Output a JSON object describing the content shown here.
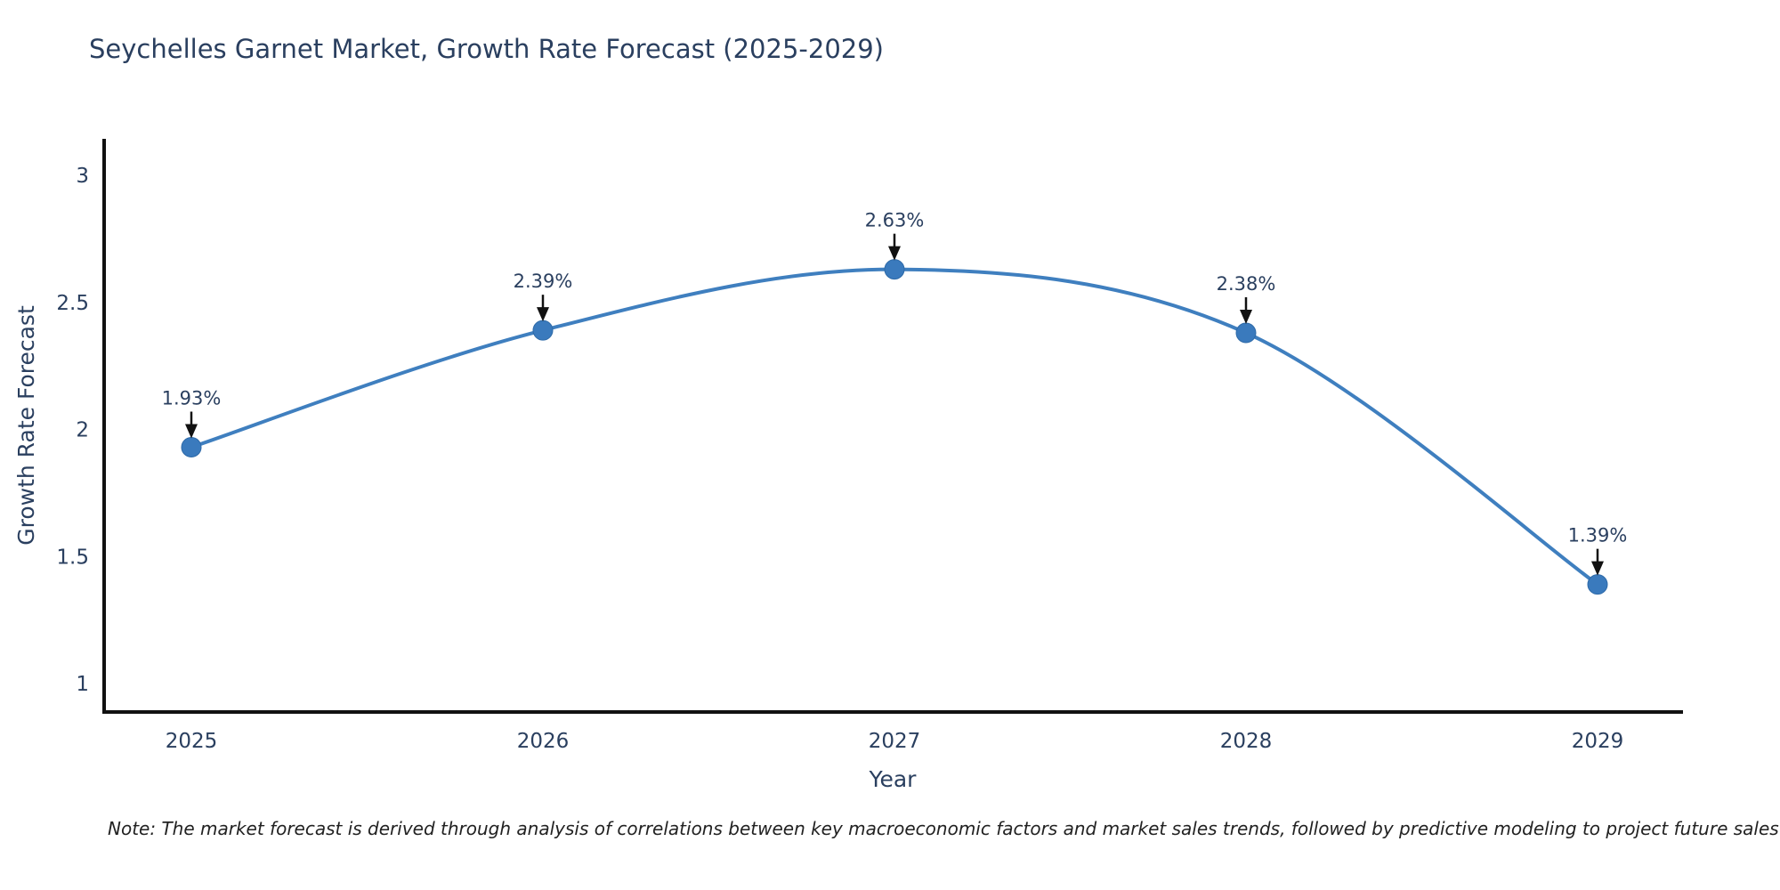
{
  "chart": {
    "title": "Seychelles Garnet Market, Growth Rate Forecast (2025-2029)"
  },
  "note": {
    "text": "Note: The market forecast is derived through analysis of correlations between key macroeconomic factors and market sales trends, followed by predictive modeling to project future sales"
  },
  "chart_data": {
    "type": "line",
    "title": "Seychelles Garnet Market, Growth Rate Forecast (2025-2029)",
    "categories": [
      "2025",
      "2026",
      "2027",
      "2028",
      "2029"
    ],
    "x": [
      2025,
      2026,
      2027,
      2028,
      2029
    ],
    "values": [
      1.93,
      2.39,
      2.63,
      2.38,
      1.39
    ],
    "point_labels": [
      "1.93%",
      "2.39%",
      "2.63%",
      "2.38%",
      "1.39%"
    ],
    "xlabel": "Year",
    "ylabel": "Growth Rate Forecast",
    "yticks": [
      3,
      2.5,
      2,
      1.5,
      1
    ],
    "ytick_labels": [
      "3",
      "2.5",
      "2",
      "1.5",
      "1"
    ],
    "ylim": [
      0.87,
      3.15
    ],
    "xlim": [
      2024.75,
      2029.25
    ],
    "line_shape": "spline",
    "grid": false,
    "legend": "none",
    "markers": true,
    "annotations": "value labels with down arrows above each point",
    "colors": {
      "line": "#3f7fbf",
      "marker": "#3a7abd",
      "marker_edge": "#2e6aa8",
      "text": "#2a3f5f",
      "axis": "#111111",
      "arrow": "#111111",
      "background": "#ffffff"
    }
  }
}
